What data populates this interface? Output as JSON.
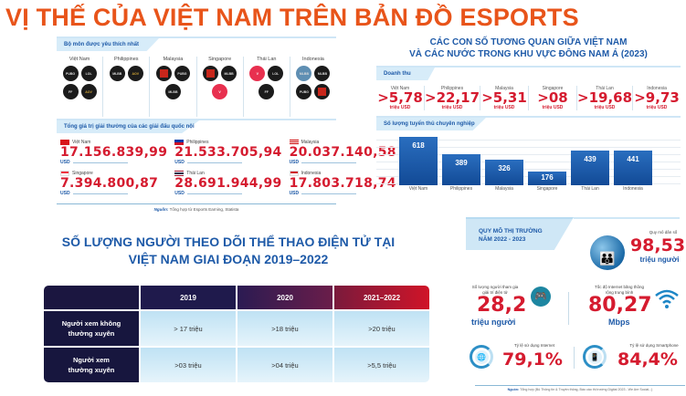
{
  "title": "VỊ THẾ CỦA VIỆT NAM TRÊN BẢN ĐỒ ESPORTS",
  "favorite_games": {
    "section_label": "Bộ môn được yêu thích nhất",
    "countries": [
      {
        "name": "Việt Nam",
        "games": [
          "PUBG",
          "Liên Minh Huyền Thoại",
          "Free Fire",
          "Liên Quân Mobile"
        ]
      },
      {
        "name": "Philippines",
        "games": [
          "Mobile Legends",
          "Liên Quân Mobile"
        ]
      },
      {
        "name": "Malaysia",
        "games": [
          "Dota 2",
          "PUBG",
          "Mobile Legends"
        ]
      },
      {
        "name": "Singapore",
        "games": [
          "Dota 2",
          "Mobile Legends",
          "Valorant"
        ]
      },
      {
        "name": "Thái Lan",
        "games": [
          "Valorant",
          "Liên Minh Huyền Thoại",
          "Free Fire"
        ]
      },
      {
        "name": "Indonesia",
        "games": [
          "Mobile Legends Bang Bang",
          "Mobile Legends",
          "PUBG",
          "Dota 2"
        ]
      }
    ]
  },
  "prize_pool": {
    "section_label": "Tổng giá trị giải thưởng của các giải đấu quốc nội",
    "unit": "USD",
    "items": [
      {
        "country": "Việt Nam",
        "flag": "vn",
        "value": "17.156.839,99"
      },
      {
        "country": "Philippines",
        "flag": "ph",
        "value": "21.533.705,94"
      },
      {
        "country": "Malaysia",
        "flag": "my",
        "value": "20.037.140,58"
      },
      {
        "country": "Singapore",
        "flag": "sg",
        "value": "7.394.800,87"
      },
      {
        "country": "Thái Lan",
        "flag": "th",
        "value": "28.691.944,99"
      },
      {
        "country": "Indonesia",
        "flag": "id",
        "value": "17.803.718,74"
      }
    ],
    "source_label": "Nguồn:",
    "source_text": " Tổng hợp từ Esports Earning, Statista"
  },
  "comparison": {
    "title_line1": "CÁC CON SỐ TƯƠNG QUAN GIỮA VIỆT NAM",
    "title_line2": "VÀ CÁC NƯỚC TRONG KHU VỰC ĐÔNG NAM Á (2023)",
    "revenue": {
      "section_label": "Doanh thu",
      "unit": "triệu USD",
      "items": [
        {
          "country": "Việt Nam",
          "value": ">5,78"
        },
        {
          "country": "Philippines",
          "value": ">22,17"
        },
        {
          "country": "Malaysia",
          "value": ">5,31"
        },
        {
          "country": "Singapore",
          "value": ">08"
        },
        {
          "country": "Thái Lan",
          "value": ">19,68"
        },
        {
          "country": "Indonesia",
          "value": ">9,73"
        }
      ]
    },
    "players": {
      "section_label": "Số lượng tuyển thủ chuyên nghiệp"
    }
  },
  "chart_data": {
    "type": "bar",
    "title": "Số lượng tuyển thủ chuyên nghiệp",
    "categories": [
      "Việt Nam",
      "Philippines",
      "Malaysia",
      "Singapore",
      "Thái Lan",
      "Indonesia"
    ],
    "values": [
      618,
      389,
      326,
      176,
      439,
      441
    ],
    "xlabel": "",
    "ylabel": "",
    "grid": true,
    "bar_color": "#1a5aa8"
  },
  "followers": {
    "title_line1": "SỐ LƯỢNG NGƯỜI THEO DÕI THỂ THAO ĐIỆN TỬ TẠI",
    "title_line2": "VIỆT NAM GIAI ĐOẠN 2019–2022",
    "columns": [
      "2019",
      "2020",
      "2021–2022"
    ],
    "rows": [
      {
        "label_line1": "Người xem không",
        "label_line2": "thường xuyên",
        "values": [
          "> 17 triệu",
          ">18 triệu",
          ">20 triệu"
        ]
      },
      {
        "label_line1": "Người xem",
        "label_line2": "thường xuyên",
        "values": [
          ">03 triệu",
          ">04 triệu",
          ">5,5 triệu"
        ]
      }
    ]
  },
  "market": {
    "tab_line1": "QUY MÔ THỊ TRƯỜNG",
    "tab_line2": "NĂM 2022 - 2023",
    "population": {
      "label": "Quy mô dân số",
      "value": "98,53",
      "unit": "triệu người"
    },
    "gamers": {
      "label_line1": "Số lượng người tham gia",
      "label_line2": "giải trí điện tử",
      "value": "28,2",
      "unit": "triệu người"
    },
    "internet_speed": {
      "label_line1": "Tốc độ Internet băng thông",
      "label_line2": "rộng trung bình",
      "value": "80,27",
      "unit": "Mbps"
    },
    "internet_usage": {
      "label": "Tỷ lệ sử dụng Internet",
      "value": "79,1%"
    },
    "smartphone_usage": {
      "label": "Tỷ lệ sử dụng Smartphone",
      "value": "84,4%"
    },
    "source_label": "Nguồn:",
    "source_text": " Tổng hợp (Bộ Thông tin & Truyền thông, Báo cáo thị trường Digital 2023 - We Are Social...)"
  },
  "colors": {
    "title": "#e8541a",
    "accent_red": "#d51b2f",
    "accent_blue": "#1e5aa8",
    "table_header_dark": "#1b1640"
  }
}
